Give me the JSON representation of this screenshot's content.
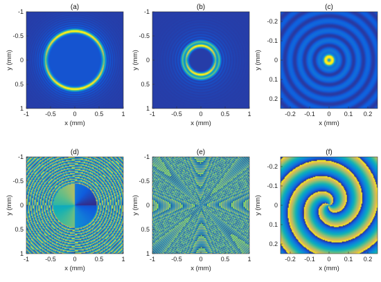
{
  "chart_data": [
    {
      "type": "heatmap",
      "title": "(a)",
      "xlabel": "x (mm)",
      "ylabel": "y (mm)",
      "xlim": [
        -1,
        1
      ],
      "ylim": [
        -1,
        1
      ],
      "y_reversed": true,
      "xticks": [
        "-1",
        "-0.5",
        "0",
        "0.5",
        "1"
      ],
      "xtick_values": [
        -1,
        -0.5,
        0,
        0.5,
        1
      ],
      "yticks": [
        "-1",
        "-0.5",
        "0",
        "0.5",
        "1"
      ],
      "ytick_values": [
        -1,
        -0.5,
        0,
        0.5,
        1
      ],
      "content": "intensity",
      "ring_radius_mm": 0.6
    },
    {
      "type": "heatmap",
      "title": "(b)",
      "xlabel": "x (mm)",
      "ylabel": "y (mm)",
      "xlim": [
        -1,
        1
      ],
      "ylim": [
        -1,
        1
      ],
      "y_reversed": true,
      "xticks": [
        "-1",
        "-0.5",
        "0",
        "0.5",
        "1"
      ],
      "xtick_values": [
        -1,
        -0.5,
        0,
        0.5,
        1
      ],
      "yticks": [
        "-1",
        "-0.5",
        "0",
        "0.5",
        "1"
      ],
      "ytick_values": [
        -1,
        -0.5,
        0,
        0.5,
        1
      ],
      "content": "intensity",
      "ring_radius_mm": 0.3
    },
    {
      "type": "heatmap",
      "title": "(c)",
      "xlabel": "x (mm)",
      "ylabel": "y (mm)",
      "xlim": [
        -0.25,
        0.25
      ],
      "ylim": [
        -0.25,
        0.25
      ],
      "y_reversed": true,
      "xticks": [
        "-0.2",
        "-0.1",
        "0",
        "0.1",
        "0.2"
      ],
      "xtick_values": [
        -0.2,
        -0.1,
        0,
        0.1,
        0.2
      ],
      "yticks": [
        "-0.2",
        "-0.1",
        "0",
        "0.1",
        "0.2"
      ],
      "ytick_values": [
        -0.2,
        -0.1,
        0,
        0.1,
        0.2
      ],
      "content": "intensity",
      "ring_radius_mm": 0.02
    },
    {
      "type": "heatmap",
      "title": "(d)",
      "xlabel": "x (mm)",
      "ylabel": "y (mm)",
      "xlim": [
        -1,
        1
      ],
      "ylim": [
        -1,
        1
      ],
      "y_reversed": true,
      "xticks": [
        "-1",
        "-0.5",
        "0",
        "0.5",
        "1"
      ],
      "xtick_values": [
        -1,
        -0.5,
        0,
        0.5,
        1
      ],
      "yticks": [
        "-1",
        "-0.5",
        "0",
        "0.5",
        "1"
      ],
      "ytick_values": [
        -1,
        -0.5,
        0,
        0.5,
        1
      ],
      "content": "phase"
    },
    {
      "type": "heatmap",
      "title": "(e)",
      "xlabel": "x (mm)",
      "ylabel": "y (mm)",
      "xlim": [
        -1,
        1
      ],
      "ylim": [
        -1,
        1
      ],
      "y_reversed": true,
      "xticks": [
        "-1",
        "-0.5",
        "0",
        "0.5",
        "1"
      ],
      "xtick_values": [
        -1,
        -0.5,
        0,
        0.5,
        1
      ],
      "yticks": [
        "-1",
        "-0.5",
        "0",
        "0.5",
        "1"
      ],
      "ytick_values": [
        -1,
        -0.5,
        0,
        0.5,
        1
      ],
      "content": "phase"
    },
    {
      "type": "heatmap",
      "title": "(f)",
      "xlabel": "x (mm)",
      "ylabel": "y (mm)",
      "xlim": [
        -0.25,
        0.25
      ],
      "ylim": [
        -0.25,
        0.25
      ],
      "y_reversed": true,
      "xticks": [
        "-0.2",
        "-0.1",
        "0",
        "0.1",
        "0.2"
      ],
      "xtick_values": [
        -0.2,
        -0.1,
        0,
        0.1,
        0.2
      ],
      "yticks": [
        "-0.2",
        "-0.1",
        "0",
        "0.1",
        "0.2"
      ],
      "ytick_values": [
        -0.2,
        -0.1,
        0,
        0.1,
        0.2
      ],
      "content": "phase"
    }
  ],
  "colors": {
    "colormap": "parula",
    "background_intensity": "#3a2fb2",
    "ring_peak": "#f9fb0e",
    "phase_blue": "#352a87",
    "phase_yellow": "#f9fb0e"
  }
}
